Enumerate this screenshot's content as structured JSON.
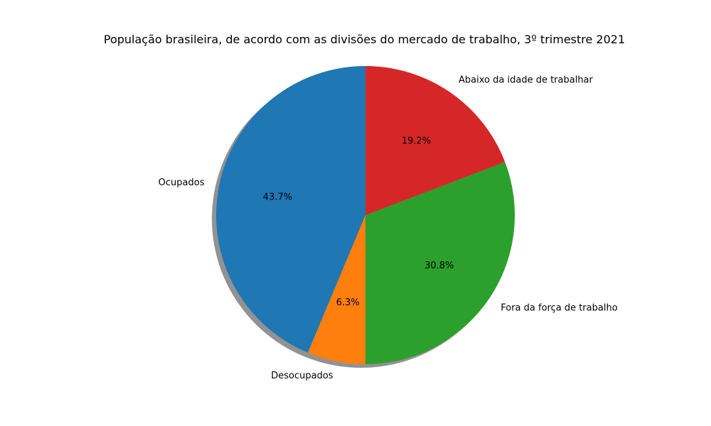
{
  "chart_data": {
    "type": "pie",
    "title": "População brasileira, de acordo com as divisões do mercado de trabalho, 3º trimestre 2021",
    "slices": [
      {
        "label": "Ocupados",
        "value": 43.7,
        "pct_label": "43.7%",
        "color": "#1f77b4"
      },
      {
        "label": "Desocupados",
        "value": 6.3,
        "pct_label": "6.3%",
        "color": "#ff7f0e"
      },
      {
        "label": "Fora da força de trabalho",
        "value": 30.8,
        "pct_label": "30.8%",
        "color": "#2ca02c"
      },
      {
        "label": "Abaixo da idade de trabalhar",
        "value": 19.2,
        "pct_label": "19.2%",
        "color": "#d62728"
      }
    ],
    "start_angle_deg": 90,
    "direction": "counterclockwise",
    "shadow": true,
    "legend": "none"
  }
}
